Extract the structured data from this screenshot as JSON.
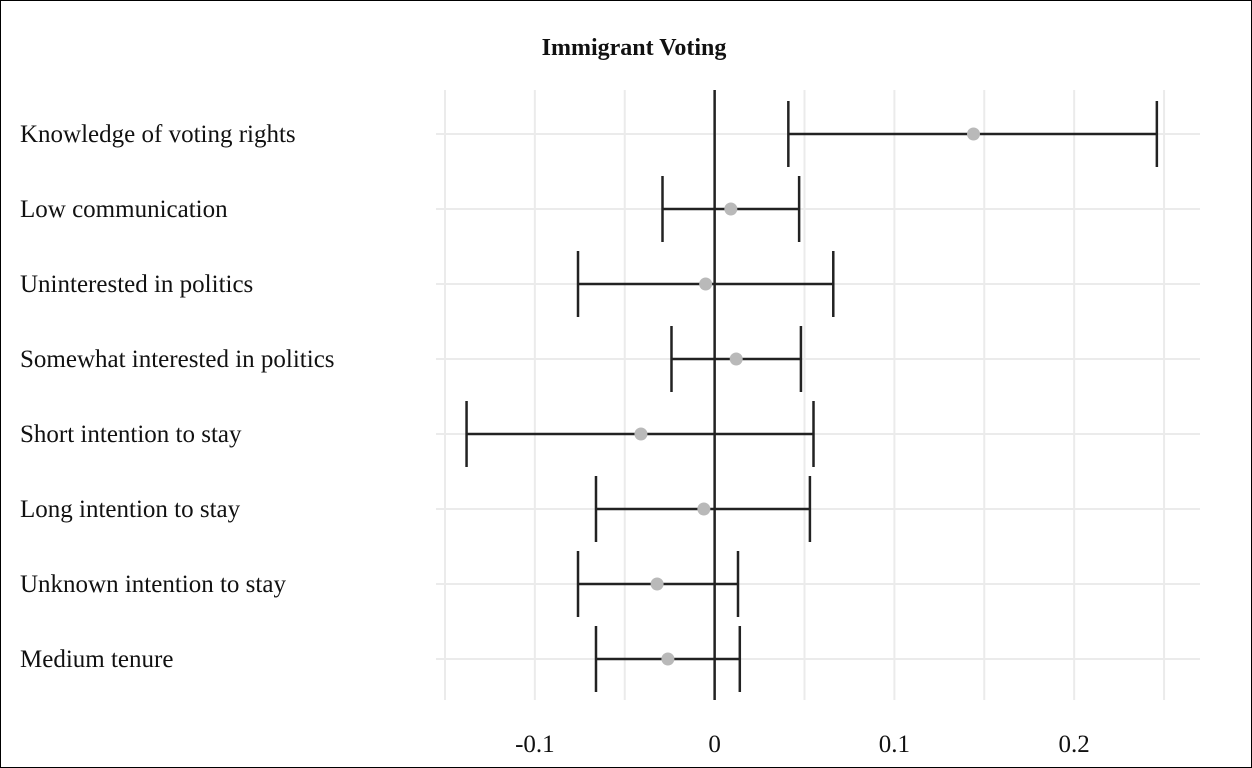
{
  "chart_data": {
    "type": "coefficient-plot",
    "title": "Immigrant Voting",
    "xlabel": "",
    "ylabel": "",
    "xlim": [
      -0.155,
      0.27
    ],
    "xticks": [
      -0.1,
      0,
      0.1,
      0.2
    ],
    "xtick_labels": [
      "-0.1",
      "0",
      "0.1",
      "0.2"
    ],
    "grid": true,
    "reference_line": 0,
    "colors": {
      "point": "#b9b9b9",
      "errorbar": "#222222",
      "grid": "#ebebeb"
    },
    "rows": [
      {
        "label": "Knowledge of voting rights",
        "estimate": 0.144,
        "lower": 0.041,
        "upper": 0.246
      },
      {
        "label": "Low communication",
        "estimate": 0.009,
        "lower": -0.029,
        "upper": 0.047
      },
      {
        "label": "Uninterested in politics",
        "estimate": -0.005,
        "lower": -0.076,
        "upper": 0.066
      },
      {
        "label": "Somewhat interested in politics",
        "estimate": 0.012,
        "lower": -0.024,
        "upper": 0.048
      },
      {
        "label": "Short intention to stay",
        "estimate": -0.041,
        "lower": -0.138,
        "upper": 0.055
      },
      {
        "label": "Long intention to stay",
        "estimate": -0.006,
        "lower": -0.066,
        "upper": 0.053
      },
      {
        "label": "Unknown intention to stay",
        "estimate": -0.032,
        "lower": -0.076,
        "upper": 0.013
      },
      {
        "label": "Medium tenure",
        "estimate": -0.026,
        "lower": -0.066,
        "upper": 0.014
      }
    ]
  }
}
